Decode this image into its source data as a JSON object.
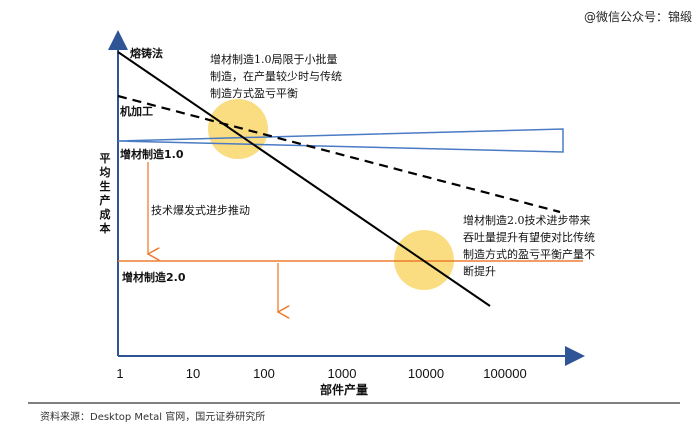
{
  "watermark": "@微信公众号：锦缎",
  "y_axis_label": "平均生产成本",
  "x_axis_label": "部件产量",
  "x_ticks": [
    "1",
    "10",
    "100",
    "1000",
    "10000",
    "100000"
  ],
  "labels": {
    "casting": "熔铸法",
    "machining": "机加工",
    "am1": "增材制造1.0",
    "am2": "增材制造2.0",
    "tech_burst": "技术爆发式进步推动"
  },
  "notes": {
    "am1_note": "增材制造1.0局限于小批量\n制造，在产量较少时与传统\n制造方式盈亏平衡",
    "am2_note": "增材制造2.0技术进步带来\n吞吐量提升有望使对比传统\n制造方式的盈亏平衡产量不\n断提升"
  },
  "source": "资料来源：Desktop Metal 官网，国元证券研究所",
  "colors": {
    "axis": "#2f5597",
    "am1_line": "#4a7bc4",
    "am2_line": "#ed7d31",
    "arrow": "#ed7d31",
    "circle": "#f9d66b",
    "black": "#000000"
  }
}
